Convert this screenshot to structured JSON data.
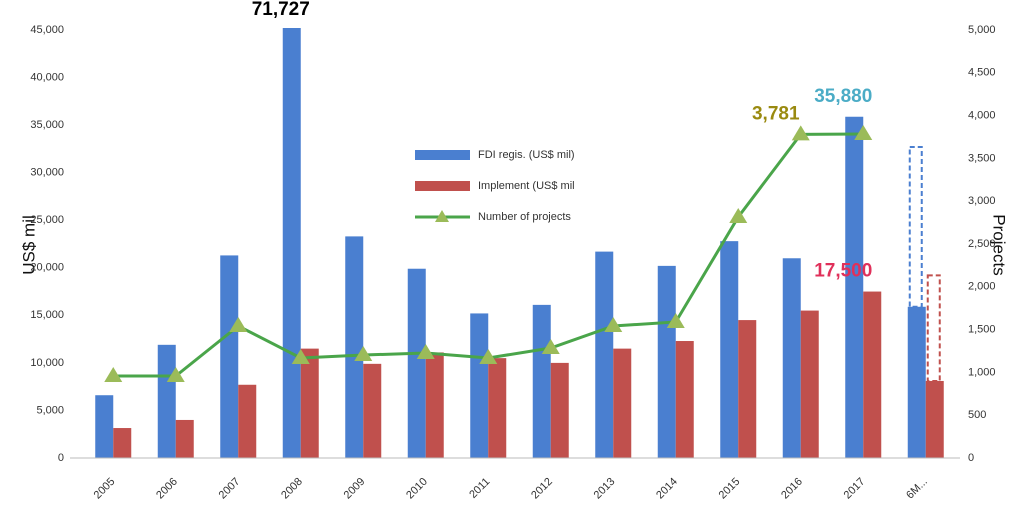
{
  "chart_data": {
    "type": "bar",
    "categories": [
      "2005",
      "2006",
      "2007",
      "2008",
      "2009",
      "2010",
      "2011",
      "2012",
      "2013",
      "2014",
      "2015",
      "2016",
      "2017",
      "6M..."
    ],
    "y_label": "US$ mil",
    "y2_label": "Projects",
    "series": [
      {
        "name": "FDI regis. (US$ mil)",
        "type": "bar",
        "color": "#4a7fd0",
        "label_color": "#4bacc6",
        "values": [
          6600,
          11900,
          21300,
          71727,
          23300,
          19900,
          15200,
          16100,
          21700,
          20200,
          22800,
          21000,
          35880,
          15900
        ],
        "projected": [
          null,
          null,
          null,
          null,
          null,
          null,
          null,
          null,
          null,
          null,
          null,
          null,
          null,
          32700
        ],
        "value_labels": [
          null,
          null,
          null,
          "71,727",
          null,
          null,
          null,
          null,
          null,
          null,
          null,
          null,
          "35,880",
          null
        ],
        "value_label_colors": [
          null,
          null,
          null,
          "#000000",
          null,
          null,
          null,
          null,
          null,
          null,
          null,
          null,
          "#4bacc6",
          null
        ]
      },
      {
        "name": "Implement (US$ mil",
        "type": "bar",
        "color": "#c0504d",
        "values": [
          3150,
          4000,
          7700,
          11500,
          9900,
          11100,
          10500,
          10000,
          11500,
          12300,
          14500,
          15500,
          17500,
          8100
        ],
        "projected": [
          null,
          null,
          null,
          null,
          null,
          null,
          null,
          null,
          null,
          null,
          null,
          null,
          null,
          19200
        ],
        "value_labels": [
          null,
          null,
          null,
          null,
          null,
          null,
          null,
          null,
          null,
          null,
          null,
          null,
          "17,500",
          null
        ],
        "value_label_colors": [
          null,
          null,
          null,
          null,
          null,
          null,
          null,
          null,
          null,
          null,
          null,
          null,
          "#e0305a",
          null
        ]
      },
      {
        "name": "Number of projects",
        "type": "line",
        "axis": "y2",
        "color": "#4aa54a",
        "marker_color": "#9bbb59",
        "values": [
          958,
          958,
          1542,
          1168,
          1203,
          1227,
          1168,
          1285,
          1542,
          1589,
          2816,
          3781,
          3785,
          null
        ],
        "value_labels": [
          null,
          null,
          null,
          null,
          null,
          null,
          null,
          null,
          null,
          null,
          null,
          "3,781",
          null,
          null
        ],
        "value_label_colors": [
          null,
          null,
          null,
          null,
          null,
          null,
          null,
          null,
          null,
          null,
          null,
          "#9a8a10",
          null,
          null
        ]
      }
    ],
    "ylim": [
      0,
      45000
    ],
    "yticks": [
      0,
      {
        "value": 5000,
        "label": "5,000"
      },
      {
        "value": 10000,
        "label": "10,000"
      },
      {
        "value": 15000,
        "label": "15,000"
      },
      {
        "value": 20000,
        "label": "20,000"
      },
      {
        "value": 25000,
        "label": "25,000"
      },
      {
        "value": 30000,
        "label": "30,000"
      },
      {
        "value": 35000,
        "label": "35,000"
      },
      {
        "value": 40000,
        "label": "40,000"
      },
      {
        "value": 45000,
        "label": "45,000"
      }
    ],
    "y2lim": [
      0,
      5000
    ],
    "y2ticks": [
      0,
      500,
      {
        "value": 1000,
        "label": "1,000"
      },
      {
        "value": 1500,
        "label": "1,500"
      },
      {
        "value": 2000,
        "label": "2,000"
      },
      {
        "value": 2500,
        "label": "2,500"
      },
      {
        "value": 3000,
        "label": "3,000"
      },
      {
        "value": 3500,
        "label": "3,500"
      },
      {
        "value": 4000,
        "label": "4,000"
      },
      {
        "value": 4500,
        "label": "4,500"
      },
      {
        "value": 5000,
        "label": "5,000"
      }
    ],
    "grid": false
  }
}
